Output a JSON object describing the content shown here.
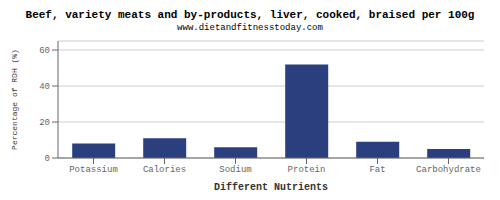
{
  "chart_data": {
    "type": "bar",
    "title": "Beef, variety meats and by-products, liver, cooked, braised per 100g",
    "subtitle": "www.dietandfitnesstoday.com",
    "xlabel": "Different Nutrients",
    "ylabel": "Percentage of RDH (%)",
    "categories": [
      "Potassium",
      "Calories",
      "Sodium",
      "Protein",
      "Fat",
      "Carbohydrate"
    ],
    "values": [
      8,
      11,
      6,
      52,
      9,
      5
    ],
    "color": "#2b3f7e",
    "ylim": [
      0,
      65
    ],
    "yticks": [
      0,
      20,
      40,
      60
    ],
    "grid": true
  }
}
